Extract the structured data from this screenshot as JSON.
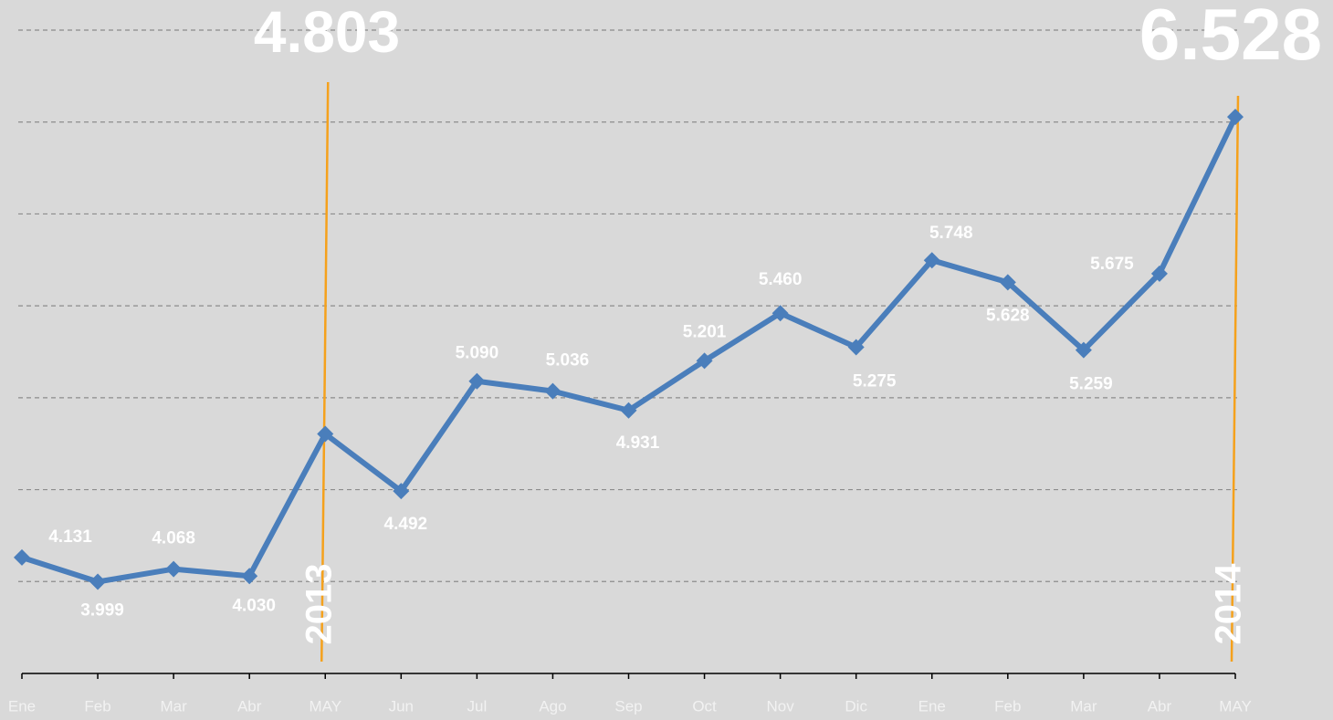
{
  "chart_data": {
    "type": "line",
    "categories": [
      "Ene",
      "Feb",
      "Mar",
      "Abr",
      "MAY",
      "Jun",
      "Jul",
      "Ago",
      "Sep",
      "Oct",
      "Nov",
      "Dic",
      "Ene",
      "Feb",
      "Mar",
      "Abr",
      "MAY"
    ],
    "series": [
      {
        "color": "#4a7ebb",
        "values": [
          4.131,
          3.999,
          4.068,
          4.03,
          4.803,
          4.492,
          5.09,
          5.036,
          4.931,
          5.201,
          5.46,
          5.275,
          5.748,
          5.628,
          5.259,
          5.675,
          6.528
        ],
        "value_labels": [
          "4.131",
          "3.999",
          "4.068",
          "4.030",
          null,
          "4.492",
          "5.090",
          "5.036",
          "4.931",
          "5.201",
          "5.460",
          "5.275",
          "5.748",
          "5.628",
          "5.259",
          "5.675",
          null
        ]
      }
    ],
    "annotations": [
      "4.803",
      "6.528",
      "2013",
      "2014"
    ],
    "marker_color": "#f5a11c",
    "ylim": [
      3.5,
      7.0
    ],
    "yticks": [
      4,
      4.5,
      5,
      5.5,
      6,
      6.5,
      7
    ],
    "grid": true
  }
}
